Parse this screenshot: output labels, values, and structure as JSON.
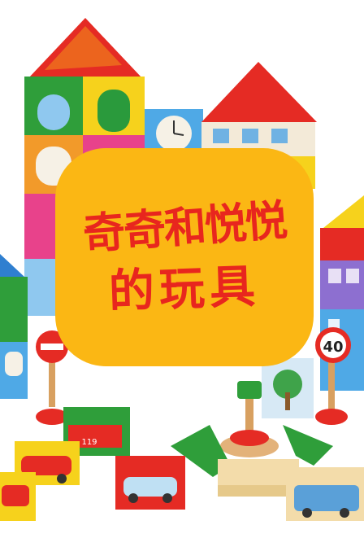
{
  "title": {
    "line1": "奇奇和悦悦",
    "line2": "的玩具"
  },
  "scene": {
    "sign_speed": "40",
    "truck_number": "119"
  },
  "colors": {
    "card": "#fbb714",
    "title_text": "#e8261e",
    "roof_red": "#e52b24",
    "block_green": "#2f9e3a",
    "block_yellow": "#f6d21c",
    "block_blue": "#2f7fd0"
  }
}
